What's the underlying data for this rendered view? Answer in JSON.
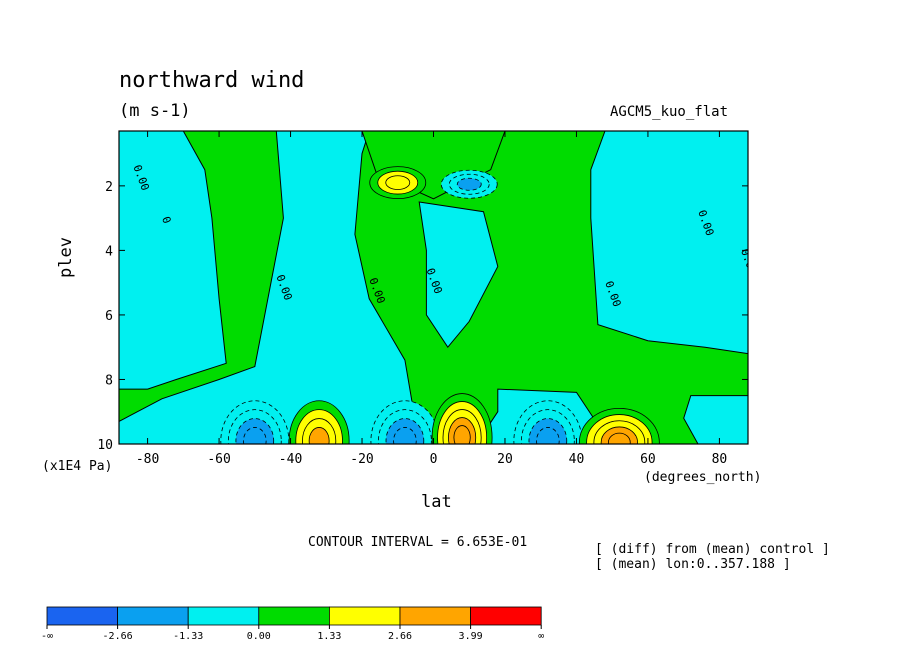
{
  "header": {
    "title": "northward wind",
    "units": "(m s-1)",
    "experiment": "AGCM5_kuo_flat"
  },
  "footer": {
    "contour_interval": "CONTOUR INTERVAL = 6.653E-01",
    "note_1": "[ (diff) from (mean) control ]",
    "note_2": "[ (mean) lon:0..357.188 ]"
  },
  "chart_data": {
    "type": "heatmap",
    "title": "northward wind",
    "units": "(m s-1)",
    "xlabel": "lat",
    "xunit": "(degrees_north)",
    "ylabel": "plev",
    "yunit": "(x1E4 Pa)",
    "xlim": [
      -88,
      88
    ],
    "ylim": [
      0.3,
      10
    ],
    "y_inverted": true,
    "x_ticks": [
      -80,
      -60,
      -40,
      -20,
      0,
      20,
      40,
      60,
      80
    ],
    "x_tick_labels": [
      "-80",
      "-60",
      "-40",
      "-20",
      "0",
      "20",
      "40",
      "60",
      "80"
    ],
    "y_ticks": [
      2,
      4,
      6,
      8,
      10
    ],
    "y_tick_labels": [
      "2",
      "4",
      "6",
      "8",
      "10"
    ],
    "contour_labels": [
      "0",
      "0.00",
      "0.00",
      "0.00",
      "0.00",
      "0.00",
      "0.00",
      "0.00"
    ],
    "colorbar": {
      "colors": [
        "#1a64f0",
        "#0aa0f0",
        "#00f0f0",
        "#00dc00",
        "#ffff00",
        "#ffa500",
        "#ff0000"
      ],
      "labels": [
        "-∞",
        "-2.66",
        "-1.33",
        "0.00",
        "1.33",
        "2.66",
        "3.99",
        "∞"
      ]
    },
    "features": [
      {
        "lat": -50,
        "plev": 9.9,
        "value": -3.3
      },
      {
        "lat": -32,
        "plev": 9.9,
        "value": 3.0
      },
      {
        "lat": -8,
        "plev": 9.9,
        "value": -3.3
      },
      {
        "lat": 8,
        "plev": 9.8,
        "value": 3.4
      },
      {
        "lat": 32,
        "plev": 9.9,
        "value": -3.0
      },
      {
        "lat": 52,
        "plev": 9.95,
        "value": 3.5
      },
      {
        "lat": -10,
        "plev": 1.9,
        "value": 2.2
      },
      {
        "lat": 10,
        "plev": 1.95,
        "value": -2.2
      }
    ]
  }
}
